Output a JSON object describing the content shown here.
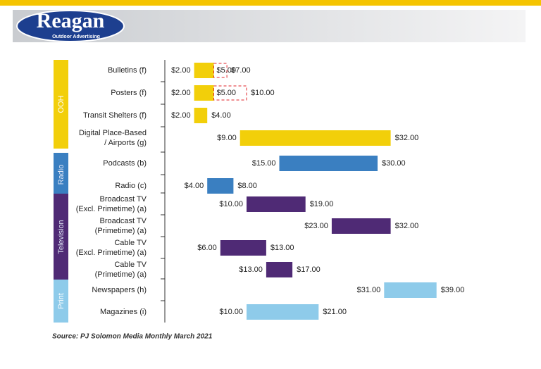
{
  "logo": {
    "name": "Reagan",
    "tagline": "Outdoor Advertising"
  },
  "chart_data": {
    "type": "range_bar",
    "xlim": [
      0,
      40
    ],
    "groups": [
      {
        "label": "OOH",
        "color": "#f2cf0a",
        "rows": [
          {
            "name": [
              "Bulletins (f)"
            ],
            "low": 2,
            "low_label": "$2.00",
            "mid": 5,
            "mid_label": "$5.00",
            "high": 7,
            "high_label": "$7.00"
          },
          {
            "name": [
              "Posters (f)"
            ],
            "low": 2,
            "low_label": "$2.00",
            "mid": 5,
            "mid_label": "$5.00",
            "high": 10,
            "high_label": "$10.00"
          },
          {
            "name": [
              "Transit Shelters (f)"
            ],
            "low": 2,
            "low_label": "$2.00",
            "high": 4,
            "high_label": "$4.00"
          },
          {
            "name": [
              "Digital Place-Based",
              "/ Airports (g)"
            ],
            "low": 9,
            "low_label": "$9.00",
            "high": 32,
            "high_label": "$32.00"
          }
        ]
      },
      {
        "label": "Radio",
        "color": "#3a7fc1",
        "rows": [
          {
            "name": [
              "Podcasts (b)"
            ],
            "low": 15,
            "low_label": "$15.00",
            "high": 30,
            "high_label": "$30.00"
          },
          {
            "name": [
              "Radio (c)"
            ],
            "low": 4,
            "low_label": "$4.00",
            "high": 8,
            "high_label": "$8.00"
          }
        ]
      },
      {
        "label": "Television",
        "color": "#4f2a75",
        "rows": [
          {
            "name": [
              "Broadcast TV",
              "(Excl. Primetime) (a)"
            ],
            "low": 10,
            "low_label": "$10.00",
            "high": 19,
            "high_label": "$19.00"
          },
          {
            "name": [
              "Broadcast TV",
              "(Primetime) (a)"
            ],
            "low": 23,
            "low_label": "$23.00",
            "high": 32,
            "high_label": "$32.00"
          },
          {
            "name": [
              "Cable TV",
              "(Excl. Primetime) (a)"
            ],
            "low": 6,
            "low_label": "$6.00",
            "high": 13,
            "high_label": "$13.00"
          },
          {
            "name": [
              "Cable TV",
              "(Primetime) (a)"
            ],
            "low": 13,
            "low_label": "$13.00",
            "high": 17,
            "high_label": "$17.00"
          }
        ]
      },
      {
        "label": "Print",
        "color": "#8ecbea",
        "rows": [
          {
            "name": [
              "Newspapers (h)"
            ],
            "low": 31,
            "low_label": "$31.00",
            "high": 39,
            "high_label": "$39.00"
          },
          {
            "name": [
              "Magazines (i)"
            ],
            "low": 10,
            "low_label": "$10.00",
            "high": 21,
            "high_label": "$21.00"
          }
        ]
      }
    ],
    "source": "Source: PJ Solomon Media Monthly March 2021"
  }
}
